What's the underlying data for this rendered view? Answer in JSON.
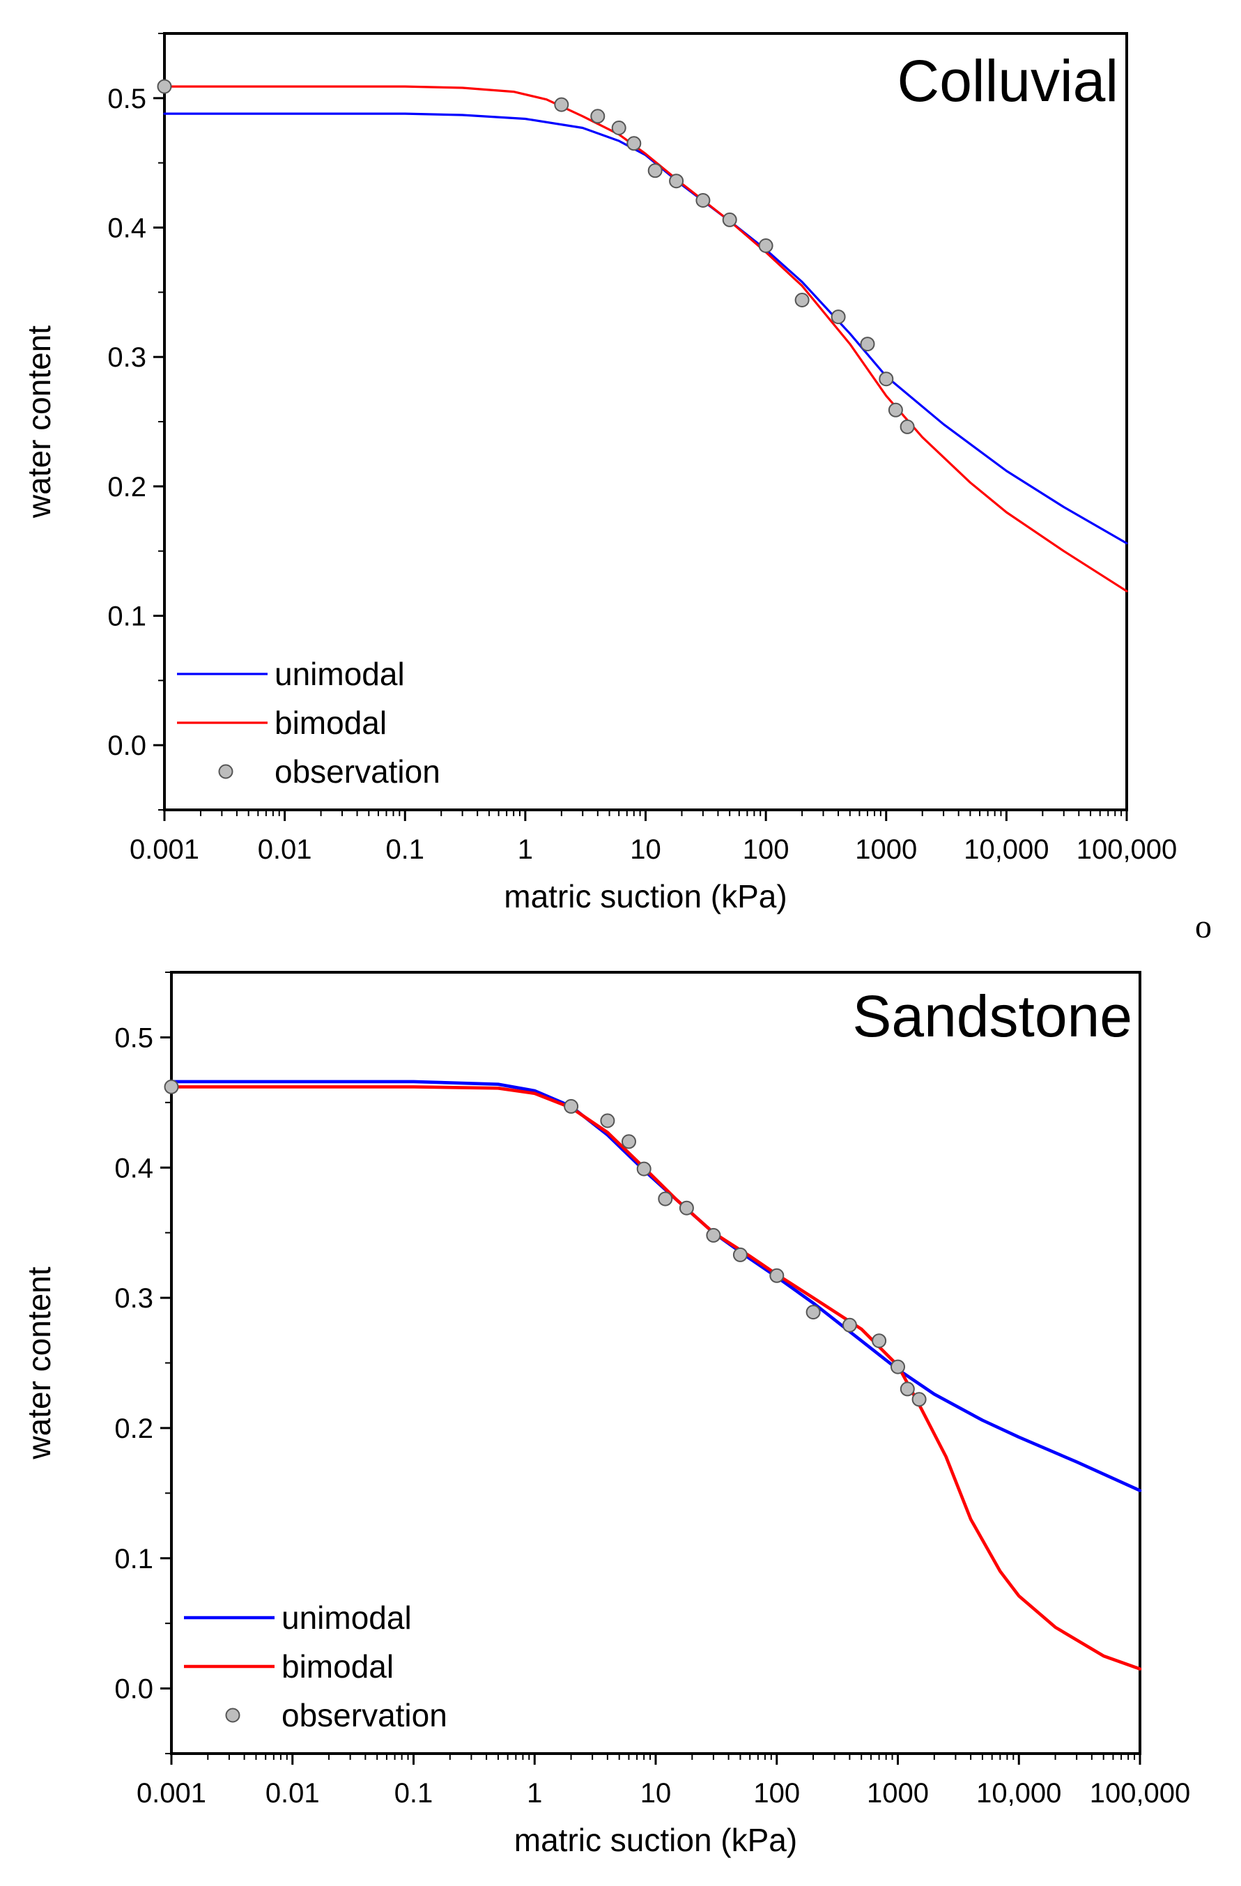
{
  "chart_data": [
    {
      "type": "scatter",
      "title": "Colluvial",
      "xlabel": "matric suction (kPa)",
      "ylabel": "water content",
      "xscale": "log",
      "xlim": [
        0.001,
        100000
      ],
      "ylim": [
        -0.05,
        0.55
      ],
      "xticks": [
        0.001,
        0.01,
        0.1,
        1,
        10,
        100,
        1000,
        10000,
        100000
      ],
      "xtick_labels": [
        "0.001",
        "0.01",
        "0.1",
        "1",
        "10",
        "100",
        "1000",
        "10,000",
        "100,000"
      ],
      "yticks": [
        0.0,
        0.1,
        0.2,
        0.3,
        0.4,
        0.5
      ],
      "ytick_labels": [
        "0.0",
        "0.1",
        "0.2",
        "0.3",
        "0.4",
        "0.5"
      ],
      "legend": {
        "position": "bottom-left",
        "entries": [
          "unimodal",
          "bimodal",
          "observation"
        ]
      },
      "series": [
        {
          "name": "unimodal",
          "kind": "line",
          "color": "#0000ff",
          "x": [
            0.001,
            0.01,
            0.1,
            0.3,
            1,
            3,
            6,
            10,
            20,
            50,
            100,
            200,
            500,
            1000,
            3000,
            10000,
            30000,
            100000
          ],
          "y": [
            0.488,
            0.488,
            0.488,
            0.487,
            0.484,
            0.477,
            0.467,
            0.456,
            0.433,
            0.405,
            0.383,
            0.358,
            0.318,
            0.285,
            0.248,
            0.212,
            0.184,
            0.156
          ]
        },
        {
          "name": "bimodal",
          "kind": "line",
          "color": "#ff0000",
          "x": [
            0.001,
            0.01,
            0.1,
            0.3,
            0.8,
            1.5,
            3,
            6,
            10,
            20,
            50,
            100,
            200,
            500,
            1000,
            2000,
            5000,
            10000,
            30000,
            100000
          ],
          "y": [
            0.509,
            0.509,
            0.509,
            0.508,
            0.505,
            0.499,
            0.486,
            0.472,
            0.457,
            0.434,
            0.405,
            0.381,
            0.355,
            0.31,
            0.27,
            0.238,
            0.203,
            0.18,
            0.15,
            0.119
          ]
        },
        {
          "name": "observation",
          "kind": "scatter",
          "color": "#bdbdbd",
          "x": [
            0.001,
            2,
            4,
            6,
            8,
            12,
            18,
            30,
            50,
            100,
            200,
            400,
            700,
            1000,
            1200,
            1500
          ],
          "y": [
            0.509,
            0.495,
            0.486,
            0.477,
            0.465,
            0.444,
            0.436,
            0.421,
            0.406,
            0.386,
            0.344,
            0.331,
            0.31,
            0.283,
            0.259,
            0.246
          ]
        }
      ]
    },
    {
      "type": "scatter",
      "title": "Sandstone",
      "xlabel": "matric suction (kPa)",
      "ylabel": "water content",
      "xscale": "log",
      "xlim": [
        0.001,
        100000
      ],
      "ylim": [
        -0.05,
        0.55
      ],
      "xticks": [
        0.001,
        0.01,
        0.1,
        1,
        10,
        100,
        1000,
        10000,
        100000
      ],
      "xtick_labels": [
        "0.001",
        "0.01",
        "0.1",
        "1",
        "10",
        "100",
        "1000",
        "10,000",
        "100,000"
      ],
      "yticks": [
        0.0,
        0.1,
        0.2,
        0.3,
        0.4,
        0.5
      ],
      "ytick_labels": [
        "0.0",
        "0.1",
        "0.2",
        "0.3",
        "0.4",
        "0.5"
      ],
      "legend": {
        "position": "bottom-left",
        "entries": [
          "unimodal",
          "bimodal",
          "observation"
        ]
      },
      "series": [
        {
          "name": "unimodal",
          "kind": "line",
          "color": "#0000ff",
          "x": [
            0.001,
            0.01,
            0.1,
            0.5,
            1,
            2,
            4,
            8,
            15,
            30,
            60,
            100,
            200,
            500,
            1000,
            2000,
            5000,
            10000,
            30000,
            100000
          ],
          "y": [
            0.466,
            0.466,
            0.466,
            0.464,
            0.459,
            0.447,
            0.425,
            0.398,
            0.375,
            0.35,
            0.33,
            0.316,
            0.296,
            0.267,
            0.245,
            0.226,
            0.206,
            0.193,
            0.174,
            0.152
          ]
        },
        {
          "name": "bimodal",
          "kind": "line",
          "color": "#ff0000",
          "x": [
            0.001,
            0.01,
            0.1,
            0.5,
            1,
            2,
            4,
            8,
            15,
            30,
            60,
            100,
            200,
            500,
            1000,
            1500,
            2500,
            4000,
            7000,
            10000,
            20000,
            50000,
            100000
          ],
          "y": [
            0.462,
            0.462,
            0.462,
            0.461,
            0.457,
            0.446,
            0.427,
            0.4,
            0.375,
            0.35,
            0.332,
            0.318,
            0.3,
            0.276,
            0.248,
            0.218,
            0.178,
            0.13,
            0.09,
            0.071,
            0.047,
            0.025,
            0.015
          ]
        },
        {
          "name": "observation",
          "kind": "scatter",
          "color": "#bdbdbd",
          "x": [
            0.001,
            2,
            4,
            6,
            8,
            12,
            18,
            30,
            50,
            100,
            200,
            400,
            700,
            1000,
            1200,
            1500
          ],
          "y": [
            0.462,
            0.447,
            0.436,
            0.42,
            0.399,
            0.376,
            0.369,
            0.348,
            0.333,
            0.317,
            0.289,
            0.279,
            0.267,
            0.247,
            0.23,
            0.222
          ]
        }
      ]
    }
  ],
  "stray_mark": "o"
}
